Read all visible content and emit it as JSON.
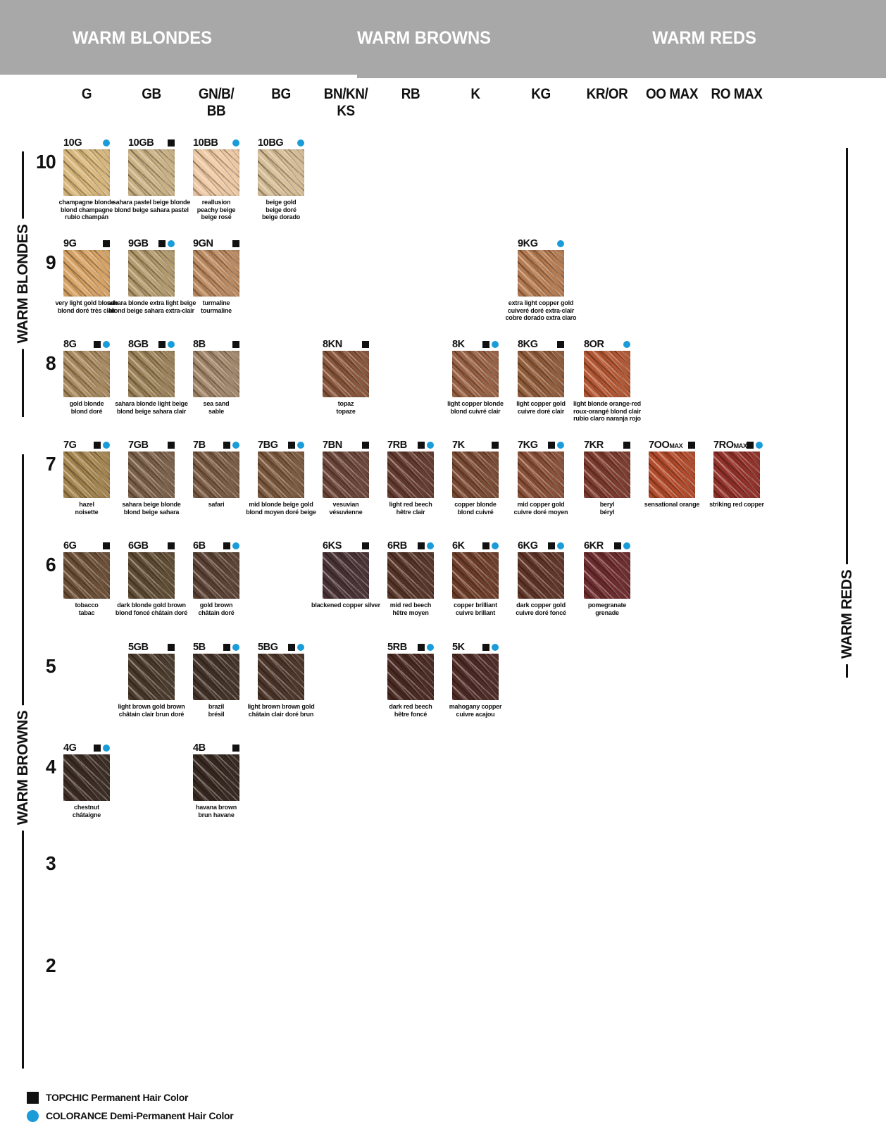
{
  "banner": {
    "sections": [
      "WARM BLONDES",
      "WARM BROWNS",
      "WARM REDS"
    ],
    "bg": "#a8a8a8"
  },
  "side_labels": {
    "left_top": "WARM BLONDES",
    "left_bottom": "WARM BROWNS",
    "right": "WARM REDS"
  },
  "columns": [
    {
      "l1": "G",
      "l2": ""
    },
    {
      "l1": "GB",
      "l2": ""
    },
    {
      "l1": "GN/B/",
      "l2": "BB"
    },
    {
      "l1": "BG",
      "l2": ""
    },
    {
      "l1": "BN/KN/",
      "l2": "KS"
    },
    {
      "l1": "RB",
      "l2": ""
    },
    {
      "l1": "K",
      "l2": ""
    },
    {
      "l1": "KG",
      "l2": ""
    },
    {
      "l1": "KR/OR",
      "l2": ""
    },
    {
      "l1": "OO MAX",
      "l2": ""
    },
    {
      "l1": "RO MAX",
      "l2": ""
    }
  ],
  "rows": [
    {
      "level": "10",
      "cells": [
        {
          "col": 0,
          "code": "10G",
          "suffix": "",
          "topchic": false,
          "colorance": true,
          "color": "#d8b77c",
          "names": [
            "champagne blonde",
            "blond champagne",
            "rubio champán"
          ]
        },
        {
          "col": 1,
          "code": "10GB",
          "suffix": "",
          "topchic": true,
          "colorance": false,
          "color": "#c9b184",
          "names": [
            "sahara pastel beige blonde",
            "blond beige sahara pastel"
          ]
        },
        {
          "col": 2,
          "code": "10BB",
          "suffix": "",
          "topchic": false,
          "colorance": true,
          "color": "#eec9a4",
          "names": [
            "reallusion",
            "peachy beige",
            "beige rosé"
          ]
        },
        {
          "col": 3,
          "code": "10BG",
          "suffix": "",
          "topchic": false,
          "colorance": true,
          "color": "#d5bd95",
          "names": [
            "beige gold",
            "beige doré",
            "beige dorado"
          ]
        }
      ]
    },
    {
      "level": "9",
      "cells": [
        {
          "col": 0,
          "code": "9G",
          "suffix": "",
          "topchic": true,
          "colorance": false,
          "color": "#d7a365",
          "names": [
            "very light gold blonde",
            "blond doré très clair"
          ]
        },
        {
          "col": 1,
          "code": "9GB",
          "suffix": "",
          "topchic": true,
          "colorance": true,
          "color": "#b29a6d",
          "names": [
            "sahara blonde extra light beige",
            "blond beige sahara extra-clair"
          ]
        },
        {
          "col": 2,
          "code": "9GN",
          "suffix": "",
          "topchic": true,
          "colorance": false,
          "color": "#bc8a60",
          "names": [
            "turmaline",
            "tourmaline"
          ]
        },
        {
          "col": 7,
          "code": "9KG",
          "suffix": "",
          "topchic": false,
          "colorance": true,
          "color": "#b57b51",
          "names": [
            "extra light copper gold",
            "cuiveré doré extra-clair",
            "cobre dorado extra claro"
          ]
        }
      ]
    },
    {
      "level": "8",
      "cells": [
        {
          "col": 0,
          "code": "8G",
          "suffix": "",
          "topchic": true,
          "colorance": true,
          "color": "#a98a5f",
          "names": [
            "gold blonde",
            "blond doré"
          ]
        },
        {
          "col": 1,
          "code": "8GB",
          "suffix": "",
          "topchic": true,
          "colorance": true,
          "color": "#9d8259",
          "names": [
            "sahara blonde light beige",
            "blond beige sahara clair"
          ]
        },
        {
          "col": 2,
          "code": "8B",
          "suffix": "",
          "topchic": true,
          "colorance": false,
          "color": "#a3876a",
          "names": [
            "sea sand",
            "sable"
          ]
        },
        {
          "col": 4,
          "code": "8KN",
          "suffix": "",
          "topchic": true,
          "colorance": false,
          "color": "#8a573c",
          "names": [
            "topaz",
            "topaze"
          ]
        },
        {
          "col": 6,
          "code": "8K",
          "suffix": "",
          "topchic": true,
          "colorance": true,
          "color": "#9a6244",
          "names": [
            "light copper blonde",
            "blond cuivré clair"
          ]
        },
        {
          "col": 7,
          "code": "8KG",
          "suffix": "",
          "topchic": true,
          "colorance": false,
          "color": "#925d3b",
          "names": [
            "light copper gold",
            "cuivre doré clair"
          ]
        },
        {
          "col": 8,
          "code": "8OR",
          "suffix": "",
          "topchic": false,
          "colorance": true,
          "color": "#b45834",
          "names": [
            "light blonde orange-red",
            "roux-orangé blond clair",
            "rubio claro naranja rojo"
          ]
        }
      ]
    },
    {
      "level": "7",
      "cells": [
        {
          "col": 0,
          "code": "7G",
          "suffix": "",
          "topchic": true,
          "colorance": true,
          "color": "#a5854f",
          "names": [
            "hazel",
            "noisette"
          ]
        },
        {
          "col": 1,
          "code": "7GB",
          "suffix": "",
          "topchic": true,
          "colorance": false,
          "color": "#7c614a",
          "names": [
            "sahara beige blonde",
            "blond beige sahara"
          ]
        },
        {
          "col": 2,
          "code": "7B",
          "suffix": "",
          "topchic": true,
          "colorance": true,
          "color": "#7b5c44",
          "names": [
            "safari"
          ]
        },
        {
          "col": 3,
          "code": "7BG",
          "suffix": "",
          "topchic": true,
          "colorance": true,
          "color": "#7d5a3e",
          "names": [
            "mid blonde beige gold",
            "blond moyen doré beige"
          ]
        },
        {
          "col": 4,
          "code": "7BN",
          "suffix": "",
          "topchic": true,
          "colorance": false,
          "color": "#6d463a",
          "names": [
            "vesuvian",
            "vésuvienne"
          ]
        },
        {
          "col": 5,
          "code": "7RB",
          "suffix": "",
          "topchic": true,
          "colorance": true,
          "color": "#653c30",
          "names": [
            "light red beech",
            "hêtre clair"
          ]
        },
        {
          "col": 6,
          "code": "7K",
          "suffix": "",
          "topchic": true,
          "colorance": false,
          "color": "#7c4c34",
          "names": [
            "copper blonde",
            "blond cuivré"
          ]
        },
        {
          "col": 7,
          "code": "7KG",
          "suffix": "",
          "topchic": true,
          "colorance": true,
          "color": "#8b5138",
          "names": [
            "mid copper gold",
            "cuivre doré moyen"
          ]
        },
        {
          "col": 8,
          "code": "7KR",
          "suffix": "",
          "topchic": true,
          "colorance": false,
          "color": "#7e3c2f",
          "names": [
            "beryl",
            "béryl"
          ]
        },
        {
          "col": 9,
          "code": "7OO",
          "suffix": "MAX",
          "topchic": true,
          "colorance": false,
          "color": "#b34b2b",
          "names": [
            "sensational orange"
          ]
        },
        {
          "col": 10,
          "code": "7RO",
          "suffix": "MAX",
          "topchic": true,
          "colorance": true,
          "color": "#93322a",
          "names": [
            "striking red copper"
          ]
        }
      ]
    },
    {
      "level": "6",
      "cells": [
        {
          "col": 0,
          "code": "6G",
          "suffix": "",
          "topchic": true,
          "colorance": false,
          "color": "#6c4f36",
          "names": [
            "tobacco",
            "tabac"
          ]
        },
        {
          "col": 1,
          "code": "6GB",
          "suffix": "",
          "topchic": true,
          "colorance": false,
          "color": "#5f4c33",
          "names": [
            "dark blonde gold brown",
            "blond foncé châtain doré"
          ]
        },
        {
          "col": 2,
          "code": "6B",
          "suffix": "",
          "topchic": true,
          "colorance": true,
          "color": "#5c4335",
          "names": [
            "gold brown",
            "châtain doré"
          ]
        },
        {
          "col": 4,
          "code": "6KS",
          "suffix": "",
          "topchic": true,
          "colorance": false,
          "color": "#4a3336",
          "names": [
            "blackened copper silver"
          ]
        },
        {
          "col": 5,
          "code": "6RB",
          "suffix": "",
          "topchic": true,
          "colorance": true,
          "color": "#583629",
          "names": [
            "mid red beech",
            "hêtre moyen"
          ]
        },
        {
          "col": 6,
          "code": "6K",
          "suffix": "",
          "topchic": true,
          "colorance": true,
          "color": "#6f3e2a",
          "names": [
            "copper brilliant",
            "cuivre brillant"
          ]
        },
        {
          "col": 7,
          "code": "6KG",
          "suffix": "",
          "topchic": true,
          "colorance": true,
          "color": "#613629",
          "names": [
            "dark copper gold",
            "cuivre doré foncé"
          ]
        },
        {
          "col": 8,
          "code": "6KR",
          "suffix": "",
          "topchic": true,
          "colorance": true,
          "color": "#6e2d2e",
          "names": [
            "pomegranate",
            "grenade"
          ]
        }
      ]
    },
    {
      "level": "5",
      "cells": [
        {
          "col": 1,
          "code": "5GB",
          "suffix": "",
          "topchic": true,
          "colorance": false,
          "color": "#4b3b2c",
          "names": [
            "light brown gold brown",
            "châtain clair brun doré"
          ]
        },
        {
          "col": 2,
          "code": "5B",
          "suffix": "",
          "topchic": true,
          "colorance": true,
          "color": "#443329",
          "names": [
            "brazil",
            "brésil"
          ]
        },
        {
          "col": 3,
          "code": "5BG",
          "suffix": "",
          "topchic": true,
          "colorance": true,
          "color": "#4d362a",
          "names": [
            "light brown brown gold",
            "châtain clair doré brun"
          ]
        },
        {
          "col": 5,
          "code": "5RB",
          "suffix": "",
          "topchic": true,
          "colorance": true,
          "color": "#4b2b23",
          "names": [
            "dark red beech",
            "hêtre foncé"
          ]
        },
        {
          "col": 6,
          "code": "5K",
          "suffix": "",
          "topchic": true,
          "colorance": true,
          "color": "#502c27",
          "names": [
            "mahogany copper",
            "cuivre acajou"
          ]
        }
      ]
    },
    {
      "level": "4",
      "cells": [
        {
          "col": 0,
          "code": "4G",
          "suffix": "",
          "topchic": true,
          "colorance": true,
          "color": "#3d2e25",
          "names": [
            "chestnut",
            "châtaigne"
          ]
        },
        {
          "col": 2,
          "code": "4B",
          "suffix": "",
          "topchic": true,
          "colorance": false,
          "color": "#382a22",
          "names": [
            "havana brown",
            "brun havane"
          ]
        }
      ]
    },
    {
      "level": "3",
      "cells": []
    },
    {
      "level": "2",
      "cells": []
    }
  ],
  "legend": [
    {
      "marker": "square",
      "label": "TOPCHIC Permanent Hair Color"
    },
    {
      "marker": "dot",
      "label": "COLORANCE Demi-Permanent Hair Color"
    }
  ],
  "colors": {
    "banner_gray": "#a8a8a8",
    "accent_blue": "#1a9cd8",
    "marker_black": "#111111"
  }
}
